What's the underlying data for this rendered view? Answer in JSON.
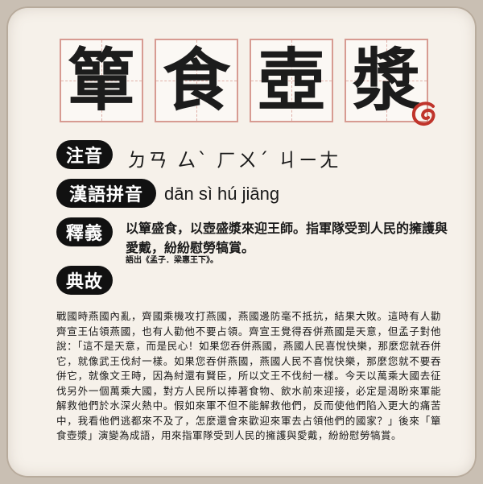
{
  "idiom": {
    "chars": [
      "簞",
      "食",
      "壺",
      "漿"
    ]
  },
  "labels": {
    "zhuyin": "注音",
    "pinyin": "漢語拼音",
    "meaning": "釋義",
    "story": "典故"
  },
  "zhuyin_text": "ㄉㄢ ㄙˋ ㄏㄨˊ ㄐㄧㄤ",
  "pinyin_text": "dān sì hú jiāng",
  "meaning_text": "以簞盛食，以壺盛漿來迎王師。指軍隊受到人民的擁護與愛戴，紛紛慰勞犒賞。",
  "source_text": "語出《孟子．梁惠王下》。",
  "story_text": "戰國時燕國內亂，齊國乘機攻打燕國，燕國邊防毫不抵抗，結果大敗。這時有人勸齊宣王佔領燕國，也有人勸他不要占領。齊宣王覺得吞併燕國是天意，但孟子對他說：「這不是天意，而是民心！如果您吞併燕國，燕國人民喜悅快樂，那麼您就吞併它，就像武王伐紂一樣。如果您吞併燕國，燕國人民不喜悅快樂，那麼您就不要吞併它，就像文王時，因為紂還有賢臣，所以文王不伐紂一樣。今天以萬乘大國去征伐另外一個萬乘大國，對方人民所以捧著食物、飲水前來迎接，必定是渴盼來軍能解救他們於水深火熱中。假如來軍不但不能解救他們，反而使他們陷入更大的痛苦中，我看他們逃都來不及了，怎麼還會來歡迎來軍去占領他們的國家？」後來「簞食壺漿」演變為成語，用來指軍隊受到人民的擁護與愛戴，紛紛慰勞犒賞。",
  "colors": {
    "accent": "#c0342b",
    "label_bg": "#111111",
    "grid": "#d79b92"
  }
}
